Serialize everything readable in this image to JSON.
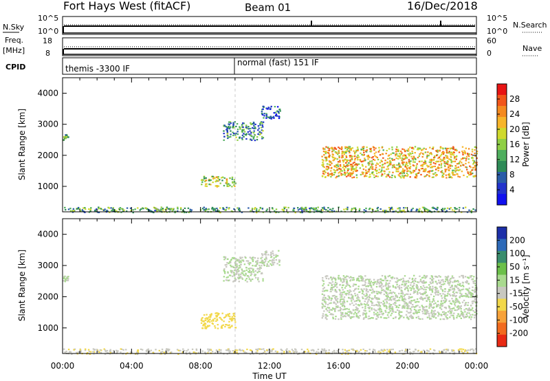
{
  "header": {
    "station": "Fort Hays West (fitACF)",
    "beam": "Beam 01",
    "date": "16/Dec/2018"
  },
  "panels": {
    "nsky": {
      "left_label": "N.Sky",
      "left_ticks": [
        "10^5",
        "10^0"
      ],
      "right_ticks": [
        "10^5",
        "10^0"
      ],
      "right_label": "N.Search"
    },
    "freq": {
      "left_label_1": "Freq.",
      "left_label_2": "[MHz]",
      "left_ticks": [
        "18",
        "8"
      ],
      "right_ticks": [
        "60",
        "0"
      ],
      "right_label": "Nave"
    },
    "cpid": {
      "label": "CPID",
      "mode1": "themis -3300 IF",
      "mode2": "normal (fast) 151 IF"
    }
  },
  "colorbars": {
    "power": {
      "label": "Power [dB]",
      "ticks": [
        "28",
        "24",
        "20",
        "16",
        "12",
        "8",
        "4"
      ],
      "colors": [
        "#e81414",
        "#f2561a",
        "#f58a1f",
        "#f7b52a",
        "#cfd92d",
        "#8fcf45",
        "#4fae5e",
        "#2e8b57",
        "#2a5ca8",
        "#2233cc",
        "#1010ee"
      ]
    },
    "velocity": {
      "label": "Velocity [m s⁻¹]",
      "ticks": [
        "200",
        "100",
        "50",
        "15",
        "-15",
        "-50",
        "-100",
        "-200"
      ],
      "colors": [
        "#1c2fa8",
        "#2d6ab8",
        "#3a8d6e",
        "#6cc04a",
        "#a9da8f",
        "#c8c8c0",
        "#f2d84a",
        "#f7a23a",
        "#f26b1f",
        "#e82a14"
      ]
    }
  },
  "chart_data": [
    {
      "type": "heatmap",
      "title": "",
      "xlabel": "Time UT",
      "ylabel": "Slant Range [km]",
      "xticks": [
        "00:00",
        "04:00",
        "08:00",
        "12:00",
        "16:00",
        "20:00",
        "00:00"
      ],
      "xlim_hours": [
        0,
        24
      ],
      "yticks": [
        1000,
        2000,
        3000,
        4000
      ],
      "ylim_km": [
        180,
        4500
      ],
      "colorbar": "Power [dB]",
      "clim": [
        0,
        30
      ],
      "regions": [
        {
          "t": [
            0.0,
            0.3
          ],
          "r": [
            2500,
            2700
          ],
          "value": 14
        },
        {
          "t": [
            8.0,
            10.0
          ],
          "r": [
            1000,
            1350
          ],
          "value": 16
        },
        {
          "t": [
            9.3,
            11.6
          ],
          "r": [
            2500,
            3100
          ],
          "value": 10
        },
        {
          "t": [
            11.5,
            12.6
          ],
          "r": [
            3200,
            3600
          ],
          "value": 6
        },
        {
          "t": [
            15.0,
            24.0
          ],
          "r": [
            1300,
            2300
          ],
          "value": 20
        },
        {
          "t": [
            0.0,
            24.0
          ],
          "r": [
            180,
            350
          ],
          "value": 12
        }
      ]
    },
    {
      "type": "heatmap",
      "title": "",
      "xlabel": "Time UT",
      "ylabel": "Slant Range [km]",
      "xticks": [
        "00:00",
        "04:00",
        "08:00",
        "12:00",
        "16:00",
        "20:00",
        "00:00"
      ],
      "xlim_hours": [
        0,
        24
      ],
      "yticks": [
        1000,
        2000,
        3000,
        4000
      ],
      "ylim_km": [
        180,
        4500
      ],
      "colorbar": "Velocity [m s⁻¹]",
      "clim": [
        -250,
        250
      ],
      "regions": [
        {
          "t": [
            0.0,
            0.3
          ],
          "r": [
            2500,
            2700
          ],
          "value": 0
        },
        {
          "t": [
            8.0,
            10.0
          ],
          "r": [
            1000,
            1500
          ],
          "value": -80
        },
        {
          "t": [
            9.3,
            11.6
          ],
          "r": [
            2500,
            3300
          ],
          "value": 0
        },
        {
          "t": [
            11.5,
            12.6
          ],
          "r": [
            3000,
            3500
          ],
          "value": 0
        },
        {
          "t": [
            15.0,
            24.0
          ],
          "r": [
            1300,
            2700
          ],
          "value": 0
        },
        {
          "t": [
            0.0,
            24.0
          ],
          "r": [
            180,
            350
          ],
          "value": -40
        }
      ]
    }
  ]
}
